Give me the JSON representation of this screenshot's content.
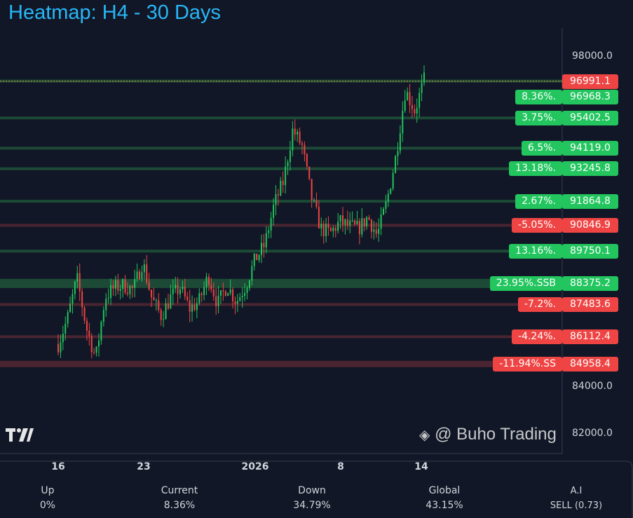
{
  "title": "Heatmap: H4 - 30 Days",
  "colors": {
    "up": "#22c55e",
    "down": "#ef4444",
    "background": "#111726",
    "title": "#29b6f6"
  },
  "chart_data": {
    "type": "candlestick",
    "title": "Heatmap: H4 - 30 Days",
    "ylim": [
      81000,
      99300
    ],
    "y_ticks": [
      "98000.0",
      "84000.0",
      "82000.0"
    ],
    "x_ticks": [
      "16",
      "23",
      "2026",
      "8",
      "14"
    ],
    "current_price": "96991.1",
    "price_path_approx": [
      85800,
      86900,
      88600,
      86500,
      85200,
      87800,
      88200,
      88300,
      88100,
      89300,
      87700,
      87000,
      87800,
      88200,
      87300,
      87600,
      88700,
      87500,
      88300,
      87600,
      88300,
      89400,
      90000,
      91700,
      92700,
      94900,
      94200,
      92000,
      90700,
      90500,
      91000,
      90800,
      90700,
      91200,
      90400,
      91800,
      93800,
      96600,
      95700,
      97000
    ],
    "levels": [
      {
        "pct": "8.36%.",
        "price": "96968.3",
        "dir": "up",
        "strength": 1
      },
      {
        "pct": "3.75%.",
        "price": "95402.5",
        "dir": "up",
        "strength": 1
      },
      {
        "pct": "6.5%.",
        "price": "94119.0",
        "dir": "up",
        "strength": 1
      },
      {
        "pct": "13.18%.",
        "price": "93245.8",
        "dir": "up",
        "strength": 1
      },
      {
        "pct": "2.67%.",
        "price": "91864.8",
        "dir": "up",
        "strength": 1
      },
      {
        "pct": "-5.05%.",
        "price": "90846.9",
        "dir": "down",
        "strength": 1
      },
      {
        "pct": "13.16%.",
        "price": "89750.1",
        "dir": "up",
        "strength": 1
      },
      {
        "pct": "23.95%.SSB",
        "price": "88375.2",
        "dir": "up",
        "strength": 3
      },
      {
        "pct": "-7.2%.",
        "price": "87483.6",
        "dir": "down",
        "strength": 1
      },
      {
        "pct": "-4.24%.",
        "price": "86112.4",
        "dir": "down",
        "strength": 1
      },
      {
        "pct": "-11.94%.SS",
        "price": "84958.4",
        "dir": "down",
        "strength": 2
      }
    ]
  },
  "stats": [
    {
      "label": "Up",
      "value": "0%"
    },
    {
      "label": "Current",
      "value": "8.36%"
    },
    {
      "label": "Down",
      "value": "34.79%"
    },
    {
      "label": "Global",
      "value": "43.15%"
    },
    {
      "label": "A.I",
      "value": "SELL (0.73)"
    }
  ],
  "watermark": "@ Buho Trading",
  "logo": "TV"
}
